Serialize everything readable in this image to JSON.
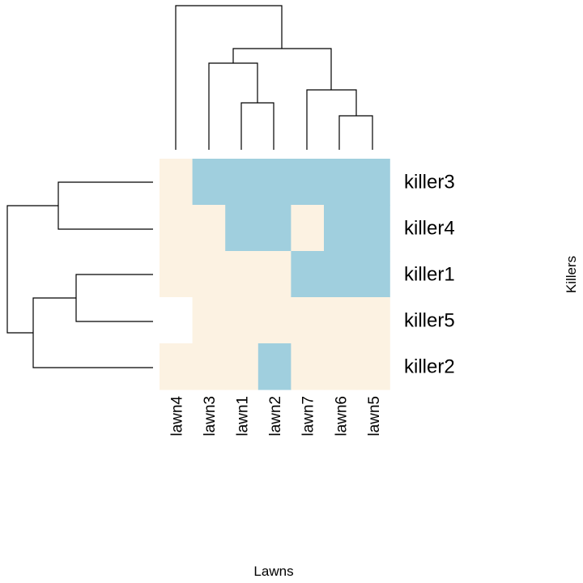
{
  "chart_data": {
    "type": "heatmap",
    "xlabel": "Lawns",
    "ylabel": "Killers",
    "columns": [
      "lawn4",
      "lawn3",
      "lawn1",
      "lawn2",
      "lawn7",
      "lawn6",
      "lawn5"
    ],
    "rows": [
      "killer3",
      "killer4",
      "killer1",
      "killer5",
      "killer2"
    ],
    "colors": {
      "0": "#fcf2e2",
      "1": "#a0cfde",
      "missing": "#ffffff"
    },
    "values": [
      [
        0,
        1,
        1,
        1,
        1,
        1,
        1
      ],
      [
        0,
        0,
        1,
        1,
        0,
        1,
        1
      ],
      [
        0,
        0,
        0,
        0,
        1,
        1,
        1
      ],
      [
        null,
        0,
        0,
        0,
        0,
        0,
        0
      ],
      [
        0,
        0,
        0,
        1,
        0,
        0,
        0
      ]
    ],
    "column_dendrogram": true,
    "row_dendrogram": true
  }
}
